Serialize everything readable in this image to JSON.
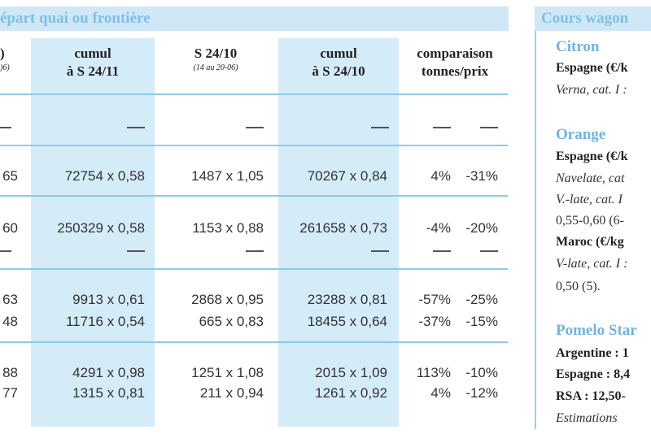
{
  "header": {
    "left_title": "épart quai ou frontière",
    "right_title": "Cours wagon"
  },
  "columns": [
    {
      "label": ")",
      "sub": ")6)"
    },
    {
      "label": "cumul\nà S 24/11",
      "sub": ""
    },
    {
      "label": "S 24/10",
      "sub": "(14 au 20-06)"
    },
    {
      "label": "cumul\nà S 24/10",
      "sub": ""
    },
    {
      "label": "comparaison\ntonnes/prix",
      "sub": ""
    }
  ],
  "rows": [
    [
      "65",
      "72754 x 0,58",
      "1487 x 1,05",
      "70267 x 0,84",
      "4%",
      "-31%"
    ],
    [
      "60",
      "250329 x 0,58",
      "1153 x 0,88",
      "261658 x 0,73",
      "-4%",
      "-20%"
    ],
    [
      "63",
      "9913 x 0,61",
      "2868 x 0,95",
      "23288 x 0,81",
      "-57%",
      "-25%"
    ],
    [
      "48",
      "11716 x 0,54",
      "665 x 0,83",
      "18455 x 0,64",
      "-37%",
      "-15%"
    ],
    [
      "88",
      "4291 x 0,98",
      "1251 x 1,08",
      "2015 x 1,09",
      "113%",
      "-10%"
    ],
    [
      "77",
      "1315 x 0,81",
      "211 x 0,94",
      "1261 x 0,92",
      "4%",
      "-12%"
    ]
  ],
  "sidebar": {
    "citron_title": "Citron",
    "citron_country": "Espagne (€/k",
    "citron_detail": "Verna, cat. I :",
    "orange_title": "Orange",
    "orange_country1": "Espagne (€/k",
    "orange_detail1": "Navelate, cat",
    "orange_detail2": "V.-late, cat. I",
    "orange_value1": "0,55-0,60 (6-",
    "orange_country2": "Maroc (€/kg",
    "orange_detail3": "V-late, cat. I :",
    "orange_value2": "0,50 (5).",
    "pomelo_title": "Pomelo Star",
    "pomelo_line1": "Argentine : 1",
    "pomelo_line2": "Espagne : 8,4",
    "pomelo_line3": "RSA : 12,50-",
    "pomelo_line4": "Estimations"
  }
}
